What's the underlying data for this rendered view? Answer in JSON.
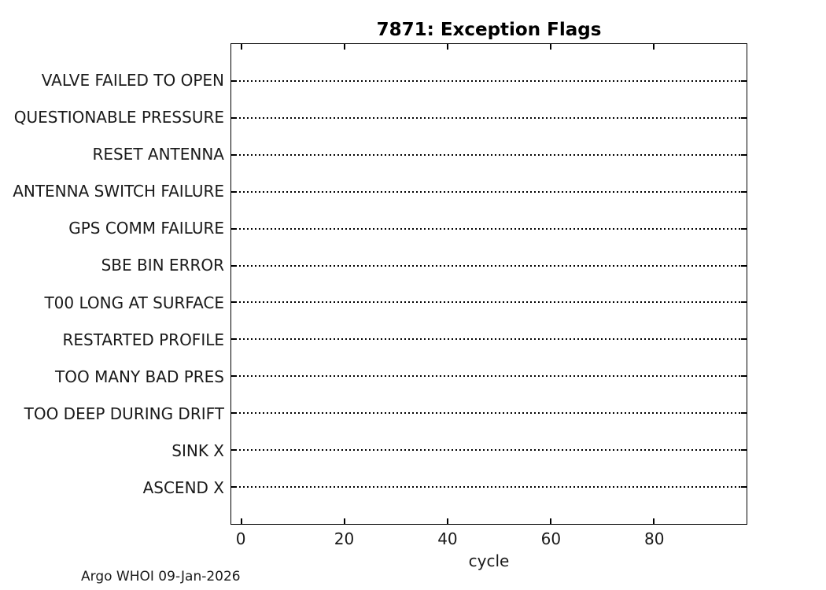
{
  "figure": {
    "footer": "Argo WHOI 09-Jan-2026"
  },
  "chart_data": {
    "type": "scatter",
    "title": "7871: Exception Flags",
    "xlabel": "cycle",
    "xlim": [
      -2,
      98
    ],
    "x_ticks": [
      0,
      20,
      40,
      60,
      80
    ],
    "categories": [
      "VALVE FAILED TO OPEN",
      "QUESTIONABLE PRESSURE",
      "RESET ANTENNA",
      "ANTENNA SWITCH FAILURE",
      "GPS COMM FAILURE",
      "SBE BIN ERROR",
      "T00 LONG AT SURFACE",
      "RESTARTED PROFILE",
      "TOO MANY BAD PRES",
      "TOO DEEP DURING DRIFT",
      "SINK X",
      "ASCEND X"
    ],
    "series": [],
    "grid": "horizontal dotted line at each category row",
    "legend": "none",
    "colors": {
      "axis": "#000000",
      "text": "#1a1a1a",
      "background": "#ffffff"
    }
  }
}
